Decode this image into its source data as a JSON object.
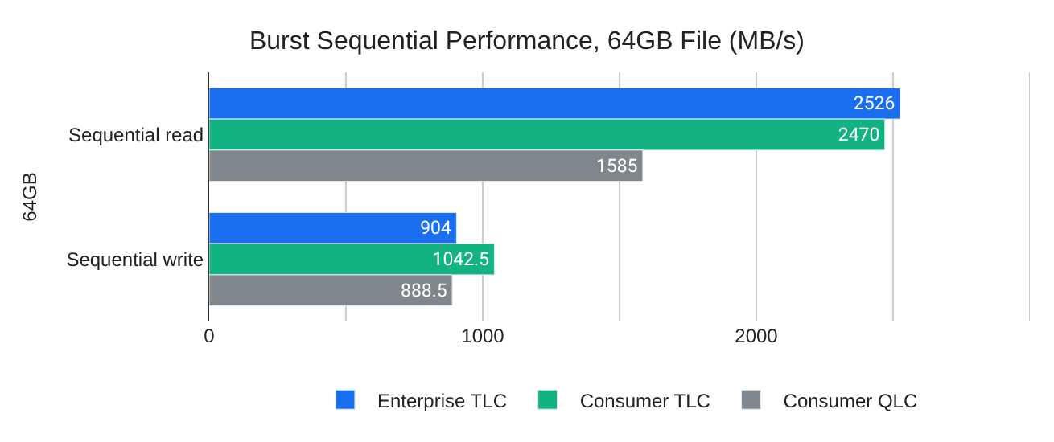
{
  "chart_data": {
    "type": "bar",
    "orientation": "horizontal",
    "title": "Burst Sequential Performance, 64GB File (MB/s)",
    "ylabel": "64GB",
    "categories": [
      "Sequential read",
      "Sequential write"
    ],
    "series": [
      {
        "name": "Enterprise TLC",
        "color": "#1a6ff0",
        "values": [
          2526,
          904
        ]
      },
      {
        "name": "Consumer TLC",
        "color": "#13b283",
        "values": [
          2470,
          1042.5
        ]
      },
      {
        "name": "Consumer QLC",
        "color": "#7f868c",
        "values": [
          1585,
          888.5
        ]
      }
    ],
    "xlim": [
      0,
      3000
    ],
    "xticks": [
      0,
      {
        "value": 500,
        "label": null
      },
      1000,
      {
        "value": 1500,
        "label": null
      },
      2000,
      {
        "value": 2500,
        "label": null
      },
      {
        "value": 3000,
        "label": null
      }
    ],
    "grid": "x",
    "legend": "bottom",
    "data_labels": true
  }
}
